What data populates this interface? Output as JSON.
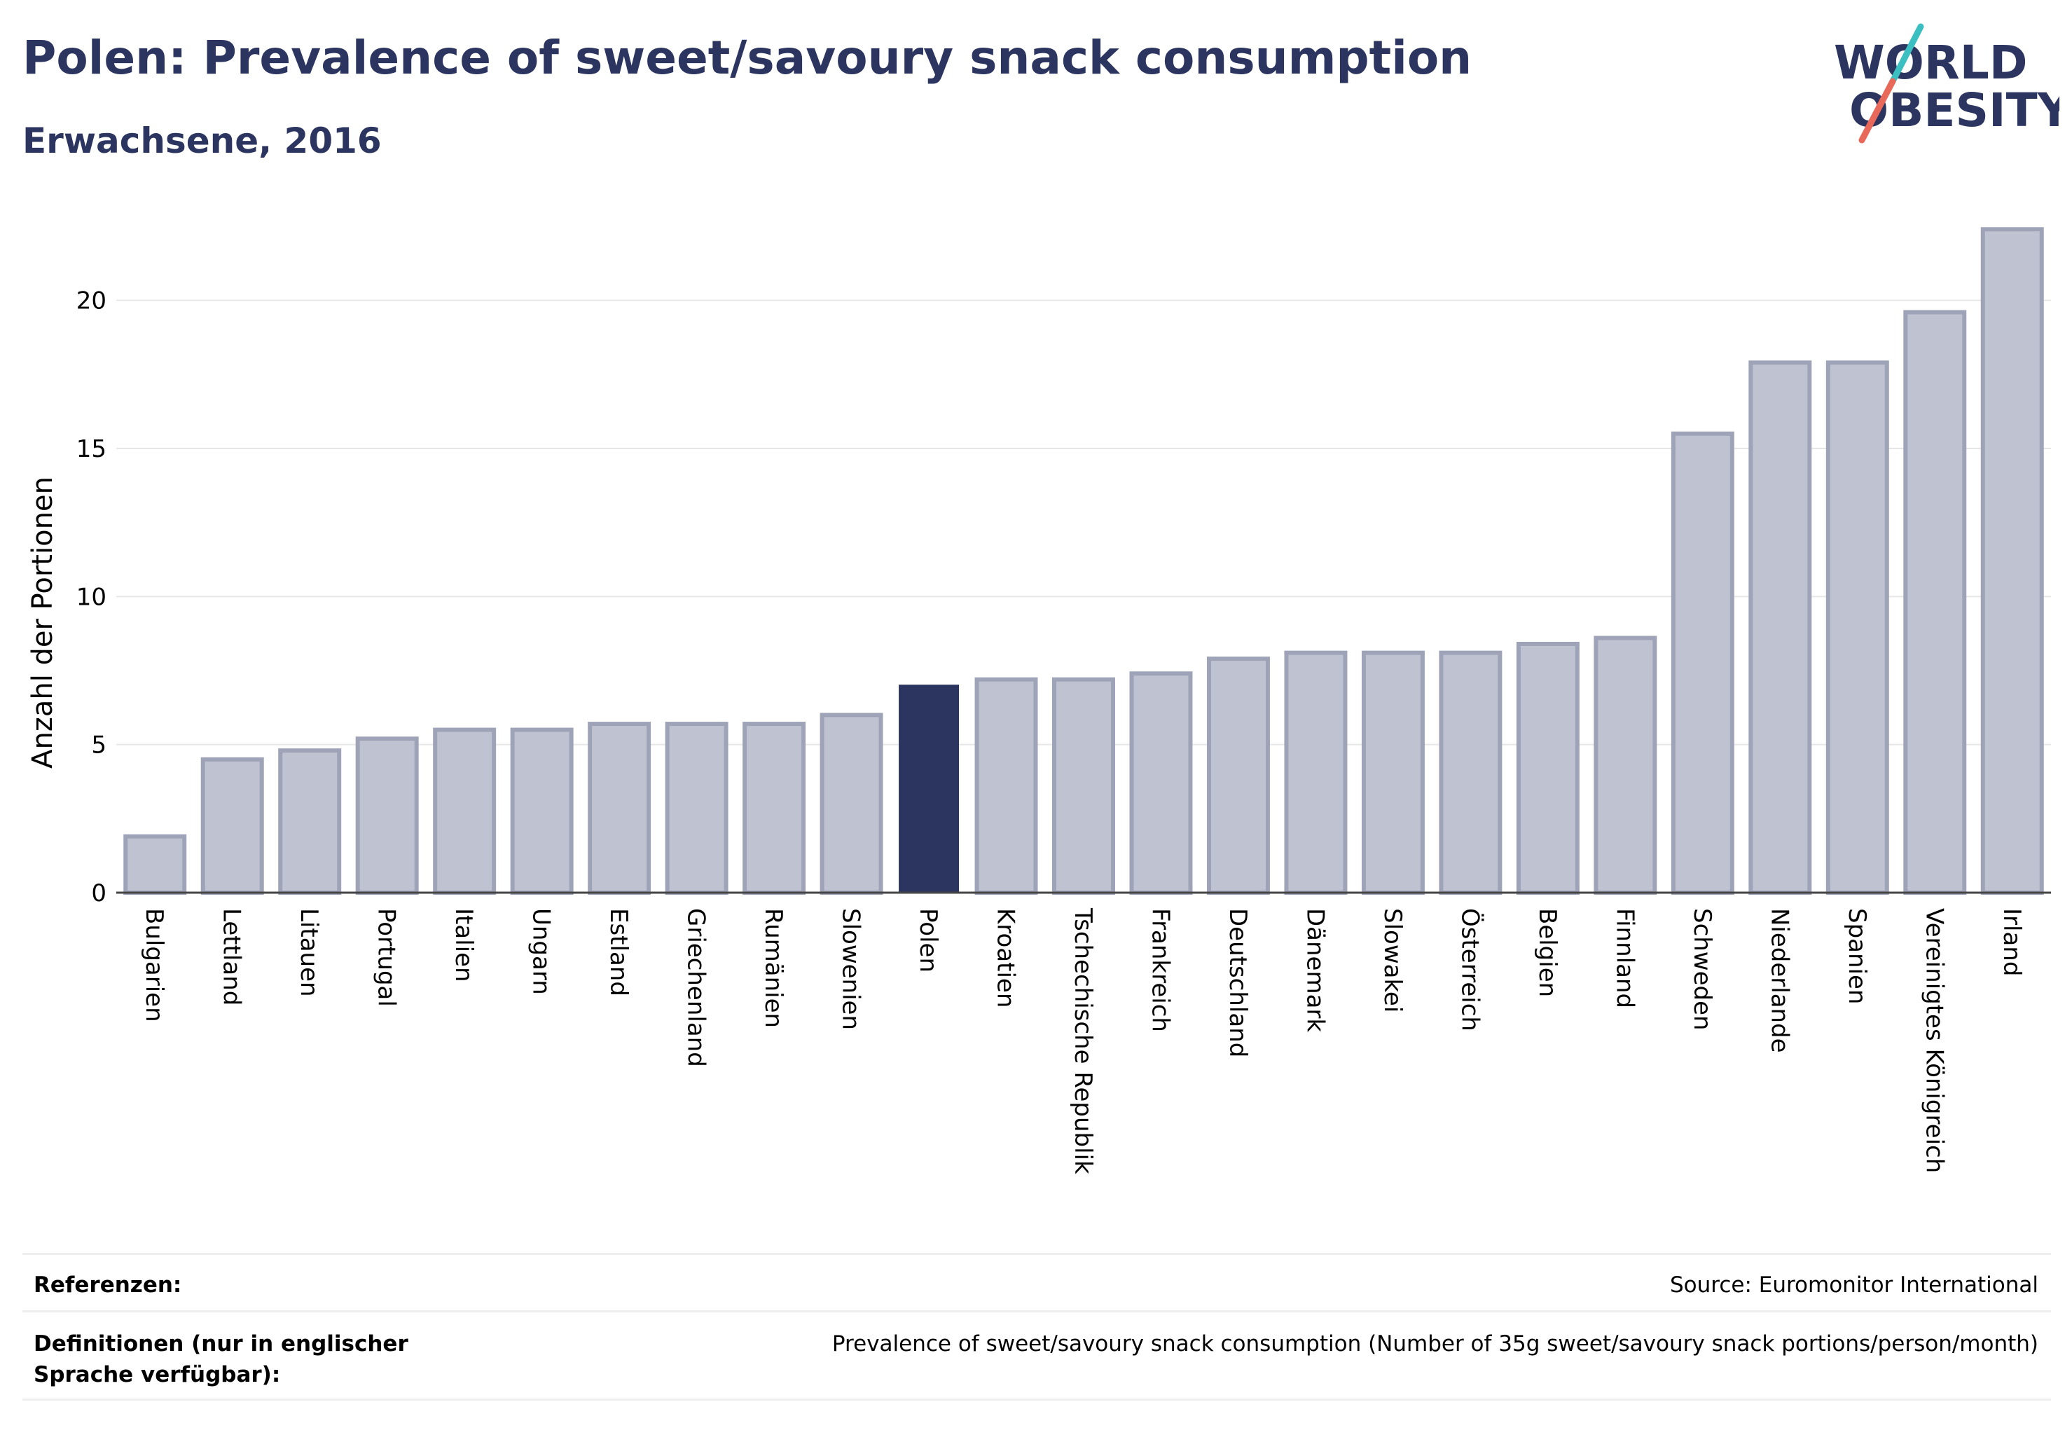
{
  "header": {
    "title": "Polen: Prevalence of sweet/savoury snack consumption",
    "subtitle": "Erwachsene, 2016"
  },
  "logo": {
    "line1": "WORLD",
    "line2": "OBESITY",
    "icon": "world-obesity-logo",
    "text_color": "#2b3560",
    "slash_top_color": "#3bbfc0",
    "slash_bottom_color": "#e8685a"
  },
  "chart_data": {
    "type": "bar",
    "title": "Polen: Prevalence of sweet/savoury snack consumption",
    "subtitle": "Erwachsene, 2016",
    "ylabel": "Anzahl der Portionen",
    "xlabel": "",
    "ylim": [
      0,
      22.5
    ],
    "yticks": [
      0,
      5,
      10,
      15,
      20
    ],
    "grid": true,
    "highlight": "Polen",
    "colors": {
      "default_fill": "#bfc2d0",
      "default_stroke": "#9ea3b8",
      "highlight_fill": "#2b3560"
    },
    "categories": [
      "Bulgarien",
      "Lettland",
      "Litauen",
      "Portugal",
      "Italien",
      "Ungarn",
      "Estland",
      "Griechenland",
      "Rumänien",
      "Slowenien",
      "Polen",
      "Kroatien",
      "Tschechische Republik",
      "Frankreich",
      "Deutschland",
      "Dänemark",
      "Slowakei",
      "Österreich",
      "Belgien",
      "Finnland",
      "Schweden",
      "Niederlande",
      "Spanien",
      "Vereinigtes Königreich",
      "Irland"
    ],
    "values": [
      1.9,
      4.5,
      4.8,
      5.2,
      5.5,
      5.5,
      5.7,
      5.7,
      5.7,
      6.0,
      7.0,
      7.2,
      7.2,
      7.4,
      7.9,
      8.1,
      8.1,
      8.1,
      8.4,
      8.6,
      15.5,
      17.9,
      17.9,
      19.6,
      22.4
    ]
  },
  "footer": {
    "references_label": "Referenzen:",
    "references_value": "Source: Euromonitor International",
    "definitions_label": "Definitionen (nur in englischer Sprache verfügbar):",
    "definitions_value": "Prevalence of sweet/savoury snack consumption (Number of 35g sweet/savoury snack portions/person/month)"
  }
}
